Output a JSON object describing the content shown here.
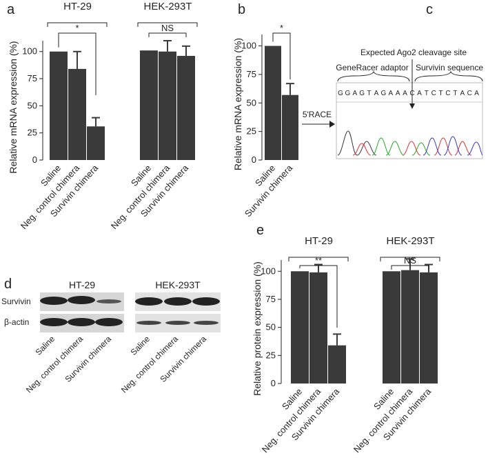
{
  "chart_data": [
    {
      "type": "bar",
      "label": "a",
      "y_label": "Relative mRNA expression (%)",
      "color": "#3a3a3a",
      "ylim": [
        0,
        110
      ],
      "yticks": [
        0,
        25,
        50,
        75,
        100
      ],
      "groups": [
        {
          "name": "HT-29",
          "categories": [
            "Saline",
            "Neg. control chimera",
            "Survivin chimera"
          ],
          "values": [
            100,
            84,
            31
          ],
          "errors": [
            null,
            16,
            8
          ],
          "annotation": "*"
        },
        {
          "name": "HEK-293T",
          "categories": [
            "Saline",
            "Neg. control chimera",
            "Survivin chimera"
          ],
          "values": [
            101,
            100,
            96
          ],
          "errors": [
            null,
            10,
            9
          ],
          "annotation": "NS"
        }
      ]
    },
    {
      "type": "bar",
      "label": "b",
      "y_label": "Relative mRNA expression (%)",
      "color": "#3a3a3a",
      "ylim": [
        0,
        110
      ],
      "yticks": [
        0,
        25,
        50,
        75,
        100
      ],
      "groups": [
        {
          "categories": [
            "Saline",
            "Survivin chimera"
          ],
          "values": [
            100,
            57
          ],
          "errors": [
            null,
            10
          ],
          "annotation": "*"
        }
      ]
    },
    {
      "type": "bar",
      "label": "e",
      "y_label": "Relative protein expression (%)",
      "color": "#3a3a3a",
      "ylim": [
        0,
        110
      ],
      "yticks": [
        0,
        25,
        50,
        75,
        100
      ],
      "groups": [
        {
          "name": "HT-29",
          "categories": [
            "Saline",
            "Neg. control chimera",
            "Survivin chimera"
          ],
          "values": [
            100,
            99,
            34
          ],
          "errors": [
            null,
            7,
            10
          ],
          "annotation": "**"
        },
        {
          "name": "HEK-293T",
          "categories": [
            "Saline",
            "Neg. control chimera",
            "Survivin chimera"
          ],
          "values": [
            100,
            101,
            99
          ],
          "errors": [
            null,
            10,
            7
          ],
          "annotation": "NS"
        }
      ]
    }
  ],
  "sequencing": {
    "label": "c",
    "method": "5'RACE",
    "site": "Expected Ago2 cleavage site",
    "adaptor": "GeneRacer adaptor",
    "target": "Survivin sequence",
    "bases": "GGAGTAGAAACATCTCTACA"
  },
  "western_blot": {
    "label": "d",
    "groups": [
      "HT-29",
      "HEK-293T"
    ],
    "proteins": [
      "Survivin",
      "β-actin"
    ],
    "lanes": [
      "Saline",
      "Neg. control chimera",
      "Survivin chimera"
    ]
  }
}
